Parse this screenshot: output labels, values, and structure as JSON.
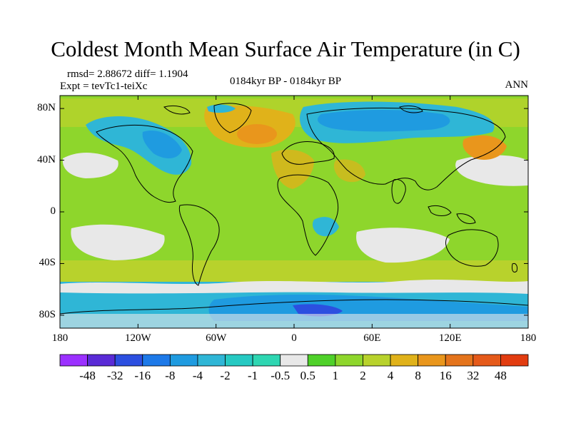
{
  "title": "Coldest Month Mean Surface Air Temperature (in C)",
  "stats_line": "rmsd= 2.88672  diff= 1.1904",
  "expt_line": "Expt = tevTc1-teiXc",
  "center_string": "0184kyr BP - 0184kyr BP",
  "right_string": "ANN",
  "map": {
    "projection": "cylindrical equidistant",
    "lon_range": [
      -180,
      180
    ],
    "lat_range": [
      -90,
      90
    ],
    "lat_ticks": [
      {
        "value": 80,
        "label": "80N"
      },
      {
        "value": 40,
        "label": "40N"
      },
      {
        "value": 0,
        "label": "0"
      },
      {
        "value": -40,
        "label": "40S"
      },
      {
        "value": -80,
        "label": "80S"
      }
    ],
    "lon_ticks": [
      {
        "value": -180,
        "label": "180"
      },
      {
        "value": -120,
        "label": "120W"
      },
      {
        "value": -60,
        "label": "60W"
      },
      {
        "value": 0,
        "label": "0"
      },
      {
        "value": 60,
        "label": "60E"
      },
      {
        "value": 120,
        "label": "120E"
      },
      {
        "value": 180,
        "label": "180"
      }
    ]
  },
  "colorbar": {
    "levels": [
      "-48",
      "-32",
      "-16",
      "-8",
      "-4",
      "-2",
      "-1",
      "-0.5",
      "0.5",
      "1",
      "2",
      "4",
      "8",
      "16",
      "32",
      "48"
    ],
    "colors": [
      "#9b30ff",
      "#5a2bd6",
      "#2c4fe0",
      "#1d79e8",
      "#1f9be0",
      "#2fb6d6",
      "#26c9c2",
      "#2ed6b2",
      "#e8e8e8",
      "#4fd12a",
      "#8ed62c",
      "#b8d22c",
      "#e0b21a",
      "#e9961c",
      "#e4741c",
      "#e55a1a",
      "#e23c10"
    ]
  },
  "colors": {
    "ocean_base": "#8ed62c",
    "land_outline": "#000000"
  }
}
